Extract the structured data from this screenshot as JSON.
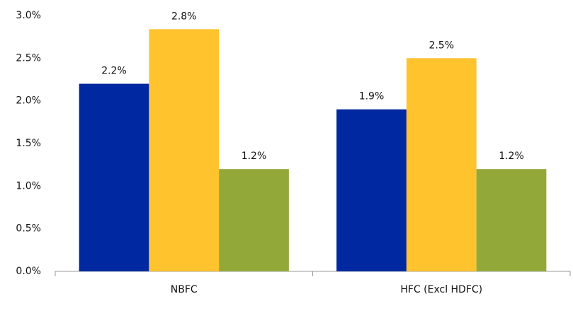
{
  "chart_data": {
    "type": "bar",
    "categories": [
      "NBFC",
      "HFC (Excl HDFC)"
    ],
    "series": [
      {
        "color": "#0028a0",
        "values": [
          2.2,
          1.9
        ],
        "value_labels": [
          "2.2%",
          "1.9%"
        ]
      },
      {
        "color": "#ffc32e",
        "values": [
          2.84,
          2.5
        ],
        "value_labels": [
          "2.8%",
          "2.5%"
        ]
      },
      {
        "color": "#92a93a",
        "values": [
          1.2,
          1.2
        ],
        "value_labels": [
          "1.2%",
          "1.2%"
        ]
      }
    ],
    "ylim": [
      0,
      3
    ],
    "yticks": [
      {
        "value": 0,
        "label": "0.0%"
      },
      {
        "value": 0.5,
        "label": "0.5%"
      },
      {
        "value": 1,
        "label": "1.0%"
      },
      {
        "value": 1.5,
        "label": "1.5%"
      },
      {
        "value": 2,
        "label": "2.0%"
      },
      {
        "value": 2.5,
        "label": "2.5%"
      },
      {
        "value": 3,
        "label": "3.0%"
      }
    ],
    "grid": false
  }
}
